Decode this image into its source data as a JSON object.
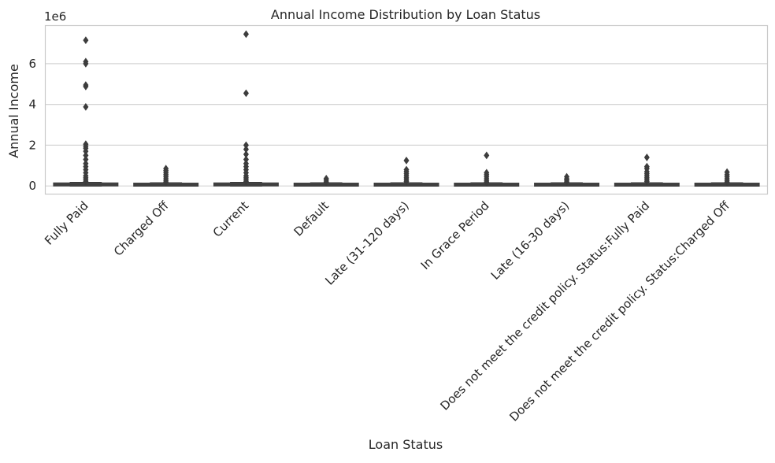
{
  "chart_data": {
    "type": "box",
    "title": "Annual Income Distribution by Loan Status",
    "xlabel": "Loan Status",
    "ylabel": "Annual Income",
    "y_multiplier_label": "1e6",
    "ylim": [
      -0.38,
      7.85
    ],
    "y_ticks": [
      0,
      2,
      4,
      6
    ],
    "y_tick_labels": [
      "0",
      "2",
      "4",
      "6"
    ],
    "grid": "horizontal",
    "colors": {
      "box_fill": "#575757",
      "box_edge": "#3d3d3d",
      "grid": "#d5d5d5",
      "spine": "#c9c9c9",
      "text": "#262626"
    },
    "categories": [
      "Fully Paid",
      "Charged Off",
      "Current",
      "Default",
      "Late (31-120 days)",
      "In Grace Period",
      "Late (16-30 days)",
      "Does not meet the credit policy. Status:Fully Paid",
      "Does not meet the credit policy. Status:Charged Off"
    ],
    "boxes": [
      {
        "q1": 0.05,
        "median": 0.07,
        "q3": 0.1,
        "whisker_low": 0.0,
        "whisker_high": 0.17,
        "outliers": [
          7.15,
          6.1,
          6.0,
          4.95,
          4.88,
          3.88,
          2.05,
          1.95,
          1.85,
          1.7,
          1.5,
          1.3,
          1.1,
          0.95,
          0.8,
          0.65,
          0.5,
          0.4,
          0.3,
          0.22
        ]
      },
      {
        "q1": 0.04,
        "median": 0.06,
        "q3": 0.09,
        "whisker_low": 0.0,
        "whisker_high": 0.15,
        "outliers": [
          0.85,
          0.75,
          0.65,
          0.55,
          0.45,
          0.35,
          0.25,
          0.18
        ]
      },
      {
        "q1": 0.05,
        "median": 0.07,
        "q3": 0.1,
        "whisker_low": 0.0,
        "whisker_high": 0.17,
        "outliers": [
          7.45,
          4.55,
          2.0,
          1.8,
          1.55,
          1.3,
          1.1,
          0.95,
          0.8,
          0.65,
          0.5,
          0.4,
          0.3,
          0.22
        ]
      },
      {
        "q1": 0.04,
        "median": 0.06,
        "q3": 0.09,
        "whisker_low": 0.0,
        "whisker_high": 0.15,
        "outliers": [
          0.36,
          0.28,
          0.2
        ]
      },
      {
        "q1": 0.04,
        "median": 0.06,
        "q3": 0.09,
        "whisker_low": 0.0,
        "whisker_high": 0.15,
        "outliers": [
          1.25,
          0.8,
          0.7,
          0.6,
          0.5,
          0.4,
          0.3,
          0.22
        ]
      },
      {
        "q1": 0.04,
        "median": 0.06,
        "q3": 0.09,
        "whisker_low": 0.0,
        "whisker_high": 0.15,
        "outliers": [
          1.5,
          0.65,
          0.55,
          0.45,
          0.35,
          0.25,
          0.18
        ]
      },
      {
        "q1": 0.04,
        "median": 0.06,
        "q3": 0.09,
        "whisker_low": 0.0,
        "whisker_high": 0.15,
        "outliers": [
          0.45,
          0.35,
          0.28,
          0.2
        ]
      },
      {
        "q1": 0.04,
        "median": 0.06,
        "q3": 0.09,
        "whisker_low": 0.0,
        "whisker_high": 0.15,
        "outliers": [
          1.4,
          0.95,
          0.85,
          0.7,
          0.6,
          0.5,
          0.4,
          0.3,
          0.22
        ]
      },
      {
        "q1": 0.04,
        "median": 0.06,
        "q3": 0.09,
        "whisker_low": 0.0,
        "whisker_high": 0.15,
        "outliers": [
          0.68,
          0.55,
          0.45,
          0.35,
          0.25,
          0.18
        ]
      }
    ]
  }
}
